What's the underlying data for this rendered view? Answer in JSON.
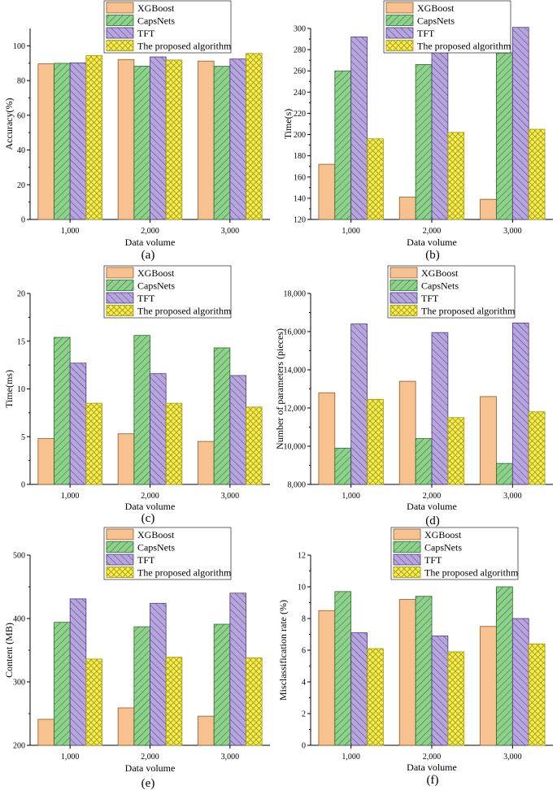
{
  "colors": {
    "xgboost": "#f7c28f",
    "capsnets": "#8ed18c",
    "tft": "#b7a6dd",
    "proposed": "#f5ec5c",
    "xgboost_stroke": "#8a5a2a",
    "capsnets_stroke": "#2c6b2a",
    "tft_stroke": "#4b3a7d",
    "proposed_stroke": "#a49a00"
  },
  "legend": [
    "XGBoost",
    "CapsNets",
    "TFT",
    "The proposed algorithm"
  ],
  "chart_data": [
    {
      "type": "bar",
      "panel": "(a)",
      "categories": [
        "1,000",
        "2,000",
        "3,000"
      ],
      "xlabel": "Data volume",
      "ylabel": "Accuracy(%)",
      "ylim": [
        0,
        110
      ],
      "yticks": [
        0,
        20,
        40,
        60,
        80,
        100
      ],
      "ytick_labels": [
        "0",
        "20",
        "40",
        "60",
        "80",
        "100"
      ],
      "series": [
        {
          "name": "XGBoost",
          "values": [
            89.6,
            92.1,
            91.2
          ]
        },
        {
          "name": "CapsNets",
          "values": [
            89.9,
            88.3,
            88.2
          ]
        },
        {
          "name": "TFT",
          "values": [
            90.2,
            93.6,
            92.4
          ]
        },
        {
          "name": "The proposed algorithm",
          "values": [
            94.4,
            91.8,
            95.6
          ]
        }
      ]
    },
    {
      "type": "bar",
      "panel": "(b)",
      "categories": [
        "1,000",
        "2,000",
        "3,000"
      ],
      "xlabel": "Data volume",
      "ylabel": "Time(s)",
      "ylim": [
        120,
        300
      ],
      "yticks": [
        120,
        140,
        160,
        180,
        200,
        220,
        240,
        260,
        280,
        300
      ],
      "ytick_labels": [
        "120",
        "140",
        "160",
        "180",
        "200",
        "220",
        "240",
        "260",
        "280",
        "300"
      ],
      "series": [
        {
          "name": "XGBoost",
          "values": [
            172,
            141,
            139
          ]
        },
        {
          "name": "CapsNets",
          "values": [
            260,
            266,
            277
          ]
        },
        {
          "name": "TFT",
          "values": [
            292,
            285,
            301
          ]
        },
        {
          "name": "The proposed algorithm",
          "values": [
            196,
            202,
            205
          ]
        }
      ]
    },
    {
      "type": "bar",
      "panel": "(c)",
      "categories": [
        "1,000",
        "2,000",
        "3,000"
      ],
      "xlabel": "Data volume",
      "ylabel": "Time(ms)",
      "ylim": [
        0,
        20
      ],
      "yticks": [
        0,
        5,
        10,
        15,
        20
      ],
      "ytick_labels": [
        "0",
        "5",
        "10",
        "15",
        "20"
      ],
      "series": [
        {
          "name": "XGBoost",
          "values": [
            4.8,
            5.3,
            4.5
          ]
        },
        {
          "name": "CapsNets",
          "values": [
            15.4,
            15.6,
            14.3
          ]
        },
        {
          "name": "TFT",
          "values": [
            12.7,
            11.6,
            11.4
          ]
        },
        {
          "name": "The proposed algorithm",
          "values": [
            8.5,
            8.5,
            8.1
          ]
        }
      ]
    },
    {
      "type": "bar",
      "panel": "(d)",
      "categories": [
        "1,000",
        "2,000",
        "3,000"
      ],
      "xlabel": "Data volume",
      "ylabel": "Number of parameters (pieces)",
      "ylim": [
        8000,
        18000
      ],
      "yticks": [
        8000,
        10000,
        12000,
        14000,
        16000,
        18000
      ],
      "ytick_labels": [
        "8,000",
        "10,000",
        "12,000",
        "14,000",
        "16,000",
        "18,000"
      ],
      "series": [
        {
          "name": "XGBoost",
          "values": [
            12800,
            13400,
            12600
          ]
        },
        {
          "name": "CapsNets",
          "values": [
            9900,
            10400,
            9100
          ]
        },
        {
          "name": "TFT",
          "values": [
            16400,
            15950,
            16450
          ]
        },
        {
          "name": "The proposed algorithm",
          "values": [
            12450,
            11500,
            11800
          ]
        }
      ]
    },
    {
      "type": "bar",
      "panel": "(e)",
      "categories": [
        "1,000",
        "2,000",
        "3,000"
      ],
      "xlabel": "Data volume",
      "ylabel": "Content (MB)",
      "ylim": [
        200,
        500
      ],
      "yticks": [
        200,
        300,
        400,
        500
      ],
      "ytick_labels": [
        "200",
        "300",
        "400",
        "500"
      ],
      "series": [
        {
          "name": "XGBoost",
          "values": [
            241,
            259,
            246
          ]
        },
        {
          "name": "CapsNets",
          "values": [
            394,
            387,
            391
          ]
        },
        {
          "name": "TFT",
          "values": [
            431,
            424,
            440
          ]
        },
        {
          "name": "The proposed algorithm",
          "values": [
            336,
            339,
            338
          ]
        }
      ]
    },
    {
      "type": "bar",
      "panel": "(f)",
      "categories": [
        "1,000",
        "2,000",
        "3,000"
      ],
      "xlabel": "Data volume",
      "ylabel": "Misclassification rate (%)",
      "ylim": [
        0,
        12
      ],
      "yticks": [
        0,
        2,
        4,
        6,
        8,
        10,
        12
      ],
      "ytick_labels": [
        "0",
        "2",
        "4",
        "6",
        "8",
        "10",
        "12"
      ],
      "series": [
        {
          "name": "XGBoost",
          "values": [
            8.5,
            9.2,
            7.5
          ]
        },
        {
          "name": "CapsNets",
          "values": [
            9.7,
            9.4,
            10.0
          ]
        },
        {
          "name": "TFT",
          "values": [
            7.1,
            6.9,
            8.0
          ]
        },
        {
          "name": "The proposed algorithm",
          "values": [
            6.1,
            5.9,
            6.4
          ]
        }
      ]
    }
  ]
}
